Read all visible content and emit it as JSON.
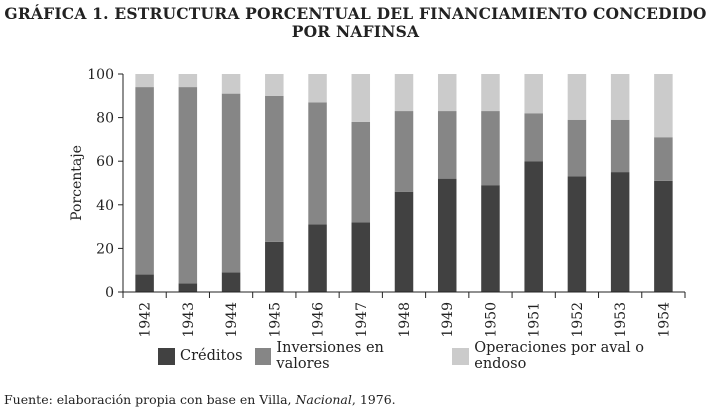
{
  "chart_data": {
    "type": "bar",
    "stacked": true,
    "title_line1": "GRÁFICA 1. ESTRUCTURA PORCENTUAL DEL FINANCIAMIENTO CONCEDIDO",
    "title_line2": "POR NAFINSA",
    "ylabel": "Porcentaje",
    "ylim": [
      0,
      100
    ],
    "yticks": [
      0,
      20,
      40,
      60,
      80,
      100
    ],
    "categories": [
      "1942",
      "1943",
      "1944",
      "1945",
      "1946",
      "1947",
      "1948",
      "1949",
      "1950",
      "1951",
      "1952",
      "1953",
      "1954"
    ],
    "series": [
      {
        "name": "Créditos",
        "color": "#414141",
        "values": [
          8,
          4,
          9,
          23,
          31,
          32,
          46,
          52,
          49,
          60,
          53,
          55,
          51
        ]
      },
      {
        "name": "Inversiones en valores",
        "color": "#868686",
        "values": [
          86,
          90,
          82,
          67,
          56,
          46,
          37,
          31,
          34,
          22,
          26,
          24,
          20
        ]
      },
      {
        "name": "Operaciones por aval o endoso",
        "color": "#cbcbcb",
        "values": [
          6,
          6,
          9,
          10,
          13,
          22,
          17,
          17,
          17,
          18,
          21,
          21,
          29
        ]
      }
    ],
    "legend": "bottom",
    "grid": false
  },
  "source": {
    "prefix": "Fuente: elaboración propia con base en Villa, ",
    "italic": "Nacional",
    "suffix": ", 1976."
  }
}
